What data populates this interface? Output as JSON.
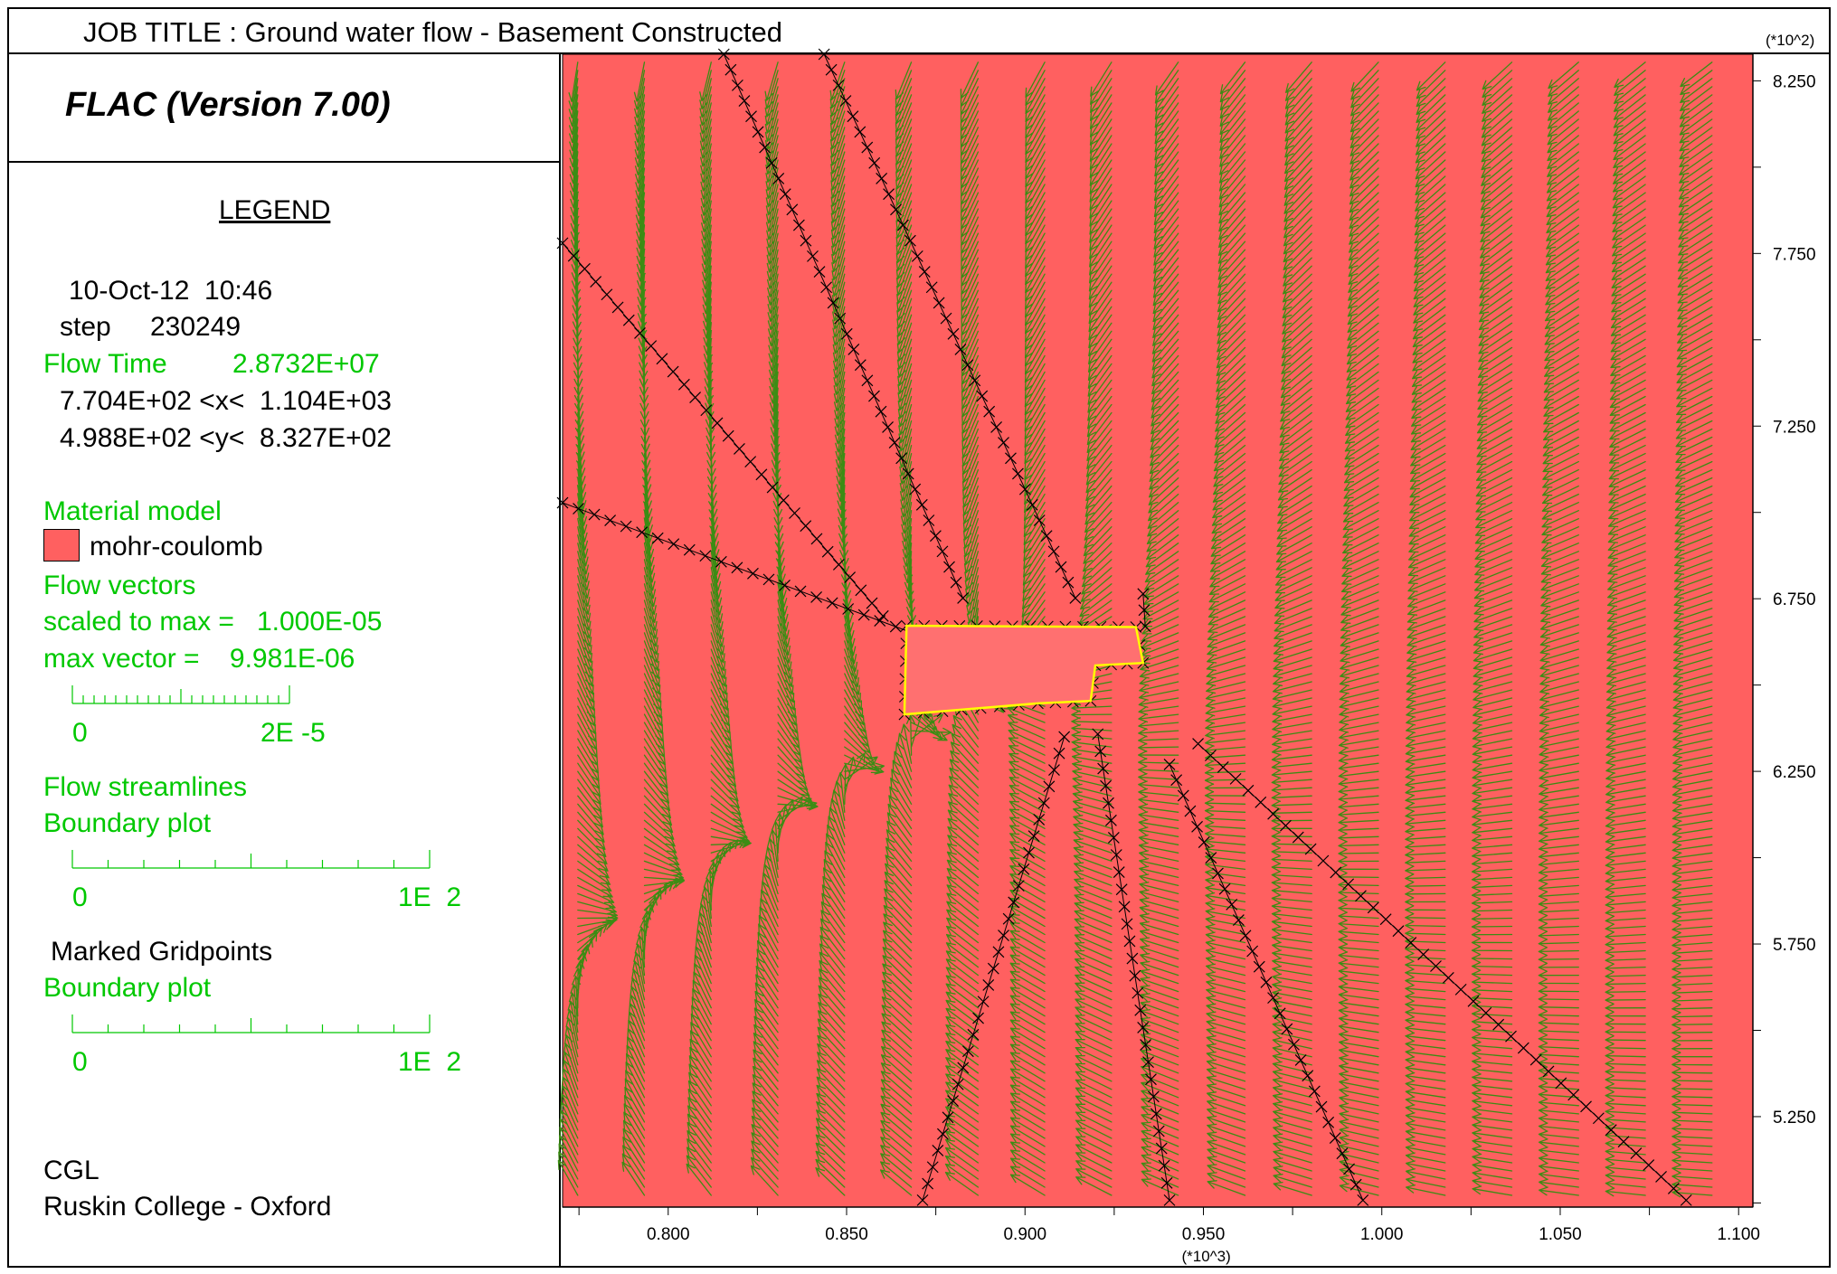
{
  "header": {
    "job_title": "JOB TITLE : Ground water flow - Basement Constructed",
    "version": "FLAC (Version 7.00)"
  },
  "legend": {
    "title": "LEGEND",
    "date": "10-Oct-12  10:46",
    "step_label": "step",
    "step_value": "230249",
    "flow_time_label": "Flow Time",
    "flow_time_value": "2.8732E+07",
    "x_range": "7.704E+02 <x<  1.104E+03",
    "y_range": "4.988E+02 <y<  8.327E+02",
    "material_model": "Material model",
    "material_name": "mohr-coulomb",
    "flow_vectors": "Flow vectors",
    "scaled_to_max": "scaled to max =   1.000E-05",
    "max_vector": "max vector =    9.981E-06",
    "vector_scale_min": "0",
    "vector_scale_max": "2E -5",
    "flow_streamlines": "Flow streamlines",
    "boundary_plot_1": "Boundary plot",
    "boundary_scale_1_min": "0",
    "boundary_scale_1_max": "1E  2",
    "marked_gridpoints": "Marked Gridpoints",
    "boundary_plot_2": "Boundary plot",
    "boundary_scale_2_min": "0",
    "boundary_scale_2_max": "1E  2",
    "org_1": "CGL",
    "org_2": "Ruskin College - Oxford"
  },
  "colors": {
    "material": "#ff6060",
    "vectors": "#3c8c14",
    "legend_green": "#00c800",
    "basement_outline": "#ffff00",
    "markers": "#000000"
  },
  "chart_data": {
    "type": "scatter",
    "x_multiplier_label": "(*10^3)",
    "y_multiplier_label": "(*10^2)",
    "xlim": [
      0.7704,
      1.104
    ],
    "ylim": [
      4.988,
      8.327
    ],
    "x_ticks": [
      "0.800",
      "0.850",
      "0.900",
      "0.950",
      "1.000",
      "1.050",
      "1.100"
    ],
    "y_ticks": [
      "5.250",
      "5.750",
      "6.250",
      "6.750",
      "7.250",
      "7.750",
      "8.250"
    ],
    "x_tick_values": [
      0.8,
      0.85,
      0.9,
      0.95,
      1.0,
      1.05,
      1.1
    ],
    "y_tick_values": [
      5.25,
      5.75,
      6.25,
      6.75,
      7.25,
      7.75,
      8.25
    ],
    "x_minor_step": 0.025,
    "y_minor_step": 0.25,
    "flow_field": {
      "source": [
        1.104,
        8.327
      ],
      "sink": [
        0.9,
        6.55
      ],
      "grid_spacing_x": 0.0085,
      "grid_spacing_y": 0.085
    },
    "basement_outline": [
      [
        0.8668,
        6.672
      ],
      [
        0.9311,
        6.668
      ],
      [
        0.9331,
        6.564
      ],
      [
        0.9197,
        6.557
      ],
      [
        0.9184,
        6.454
      ],
      [
        0.9036,
        6.447
      ],
      [
        0.8662,
        6.415
      ]
    ],
    "marked_lines": [
      {
        "from": [
          0.8156,
          8.327
        ],
        "to": [
          0.8826,
          6.752
        ]
      },
      {
        "from": [
          0.8437,
          8.327
        ],
        "to": [
          0.9141,
          6.752
        ]
      },
      {
        "from": [
          0.7704,
          7.78
        ],
        "to": [
          0.8602,
          6.7
        ]
      },
      {
        "from": [
          0.7704,
          7.028
        ],
        "to": [
          0.8682,
          6.652
        ]
      },
      {
        "from": [
          0.9331,
          6.764
        ],
        "to": [
          0.9337,
          6.67
        ]
      },
      {
        "from": [
          0.911,
          6.35
        ],
        "to": [
          0.8713,
          5.008
        ]
      },
      {
        "from": [
          0.9204,
          6.358
        ],
        "to": [
          0.9405,
          5.008
        ]
      },
      {
        "from": [
          0.9405,
          6.27
        ],
        "to": [
          0.9947,
          5.008
        ]
      },
      {
        "from": [
          0.9485,
          6.33
        ],
        "to": [
          1.0853,
          5.008
        ]
      }
    ]
  }
}
